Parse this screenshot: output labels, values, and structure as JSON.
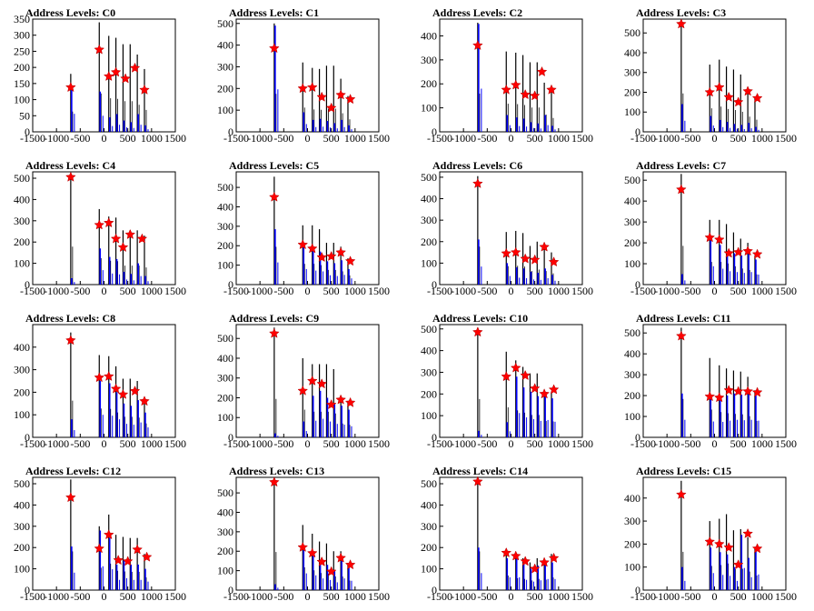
{
  "chart_data": {
    "type": "histogram",
    "x_ticks": [
      -1500,
      -1000,
      -500,
      0,
      500,
      1000,
      1500
    ],
    "xlim": [
      -1500,
      1500
    ],
    "colors": {
      "outline": "#000000",
      "blue_series": "#0000ff",
      "marker": "#ff0000"
    },
    "peak_x": [
      -700,
      -100,
      100,
      250,
      400,
      550,
      700,
      850
    ],
    "panels": [
      {
        "title": "Address Levels: C0",
        "ylim": [
          0,
          350
        ],
        "y_ticks": [
          0,
          50,
          100,
          150,
          200,
          250,
          300,
          350
        ],
        "black_peaks": [
          180,
          340,
          298,
          292,
          272,
          272,
          240,
          195
        ],
        "blue_peaks": [
          140,
          125,
          45,
          55,
          35,
          30,
          55,
          20
        ],
        "star_x": [
          -700,
          -100,
          100,
          250,
          450,
          650,
          850
        ],
        "star_y": [
          138,
          255,
          172,
          185,
          165,
          198,
          130
        ]
      },
      {
        "title": "Address Levels: C1",
        "ylim": [
          0,
          520
        ],
        "y_ticks": [
          0,
          100,
          200,
          300,
          400,
          500
        ],
        "black_peaks": [
          500,
          320,
          295,
          290,
          305,
          305,
          245,
          165
        ],
        "blue_peaks": [
          490,
          90,
          55,
          60,
          50,
          40,
          55,
          30
        ],
        "star_x": [
          -700,
          -100,
          100,
          300,
          500,
          700,
          900
        ],
        "star_y": [
          385,
          200,
          205,
          160,
          110,
          170,
          150
        ]
      },
      {
        "title": "Address Levels: C2",
        "ylim": [
          0,
          470
        ],
        "y_ticks": [
          0,
          100,
          200,
          300,
          400
        ],
        "black_peaks": [
          455,
          335,
          330,
          320,
          290,
          290,
          205,
          165
        ],
        "blue_peaks": [
          450,
          70,
          60,
          55,
          40,
          35,
          70,
          25
        ],
        "star_x": [
          -700,
          -100,
          100,
          300,
          500,
          650,
          850
        ],
        "star_y": [
          360,
          175,
          195,
          155,
          150,
          250,
          175
        ]
      },
      {
        "title": "Address Levels: C3",
        "ylim": [
          0,
          570
        ],
        "y_ticks": [
          0,
          100,
          200,
          300,
          400,
          500
        ],
        "black_peaks": [
          555,
          340,
          365,
          330,
          315,
          290,
          220,
          175
        ],
        "blue_peaks": [
          140,
          80,
          60,
          50,
          40,
          35,
          45,
          25
        ],
        "star_x": [
          -700,
          -100,
          100,
          300,
          500,
          700,
          900
        ],
        "star_y": [
          545,
          200,
          225,
          175,
          150,
          205,
          170
        ]
      },
      {
        "title": "Address Levels: C4",
        "ylim": [
          0,
          530
        ],
        "y_ticks": [
          0,
          100,
          200,
          300,
          400,
          500
        ],
        "black_peaks": [
          510,
          355,
          320,
          315,
          255,
          255,
          255,
          230
        ],
        "blue_peaks": [
          30,
          170,
          130,
          120,
          60,
          50,
          100,
          40
        ],
        "star_x": [
          -700,
          -100,
          100,
          250,
          400,
          550,
          800
        ],
        "star_y": [
          505,
          280,
          290,
          215,
          175,
          235,
          215
        ]
      },
      {
        "title": "Address Levels: C5",
        "ylim": [
          0,
          580
        ],
        "y_ticks": [
          0,
          100,
          200,
          300,
          400,
          500
        ],
        "black_peaks": [
          555,
          305,
          305,
          285,
          215,
          215,
          195,
          135
        ],
        "blue_peaks": [
          285,
          200,
          180,
          170,
          120,
          110,
          125,
          80
        ],
        "star_x": [
          -700,
          -100,
          100,
          300,
          500,
          700,
          900
        ],
        "star_y": [
          450,
          205,
          185,
          140,
          145,
          165,
          120
        ]
      },
      {
        "title": "Address Levels: C6",
        "ylim": [
          0,
          525
        ],
        "y_ticks": [
          0,
          100,
          200,
          300,
          400,
          500
        ],
        "black_peaks": [
          505,
          245,
          250,
          240,
          180,
          200,
          180,
          150
        ],
        "blue_peaks": [
          210,
          100,
          80,
          75,
          60,
          55,
          75,
          45
        ],
        "star_x": [
          -700,
          -100,
          100,
          300,
          500,
          700,
          900
        ],
        "star_y": [
          470,
          145,
          150,
          120,
          115,
          175,
          105
        ]
      },
      {
        "title": "Address Levels: C7",
        "ylim": [
          0,
          540
        ],
        "y_ticks": [
          0,
          100,
          200,
          300,
          400,
          500
        ],
        "black_peaks": [
          530,
          310,
          310,
          290,
          250,
          220,
          200,
          140
        ],
        "blue_peaks": [
          50,
          220,
          190,
          160,
          150,
          140,
          150,
          120
        ],
        "star_x": [
          -700,
          -100,
          100,
          300,
          500,
          700,
          900
        ],
        "star_y": [
          455,
          225,
          215,
          150,
          155,
          160,
          145
        ]
      },
      {
        "title": "Address Levels: C8",
        "ylim": [
          0,
          500
        ],
        "y_ticks": [
          0,
          100,
          200,
          300,
          400
        ],
        "black_peaks": [
          465,
          365,
          360,
          315,
          260,
          260,
          250,
          175
        ],
        "blue_peaks": [
          80,
          250,
          240,
          200,
          150,
          140,
          165,
          110
        ],
        "star_x": [
          -700,
          -100,
          100,
          250,
          400,
          650,
          850
        ],
        "star_y": [
          430,
          265,
          270,
          215,
          190,
          205,
          160
        ]
      },
      {
        "title": "Address Levels: C9",
        "ylim": [
          0,
          570
        ],
        "y_ticks": [
          0,
          100,
          200,
          300,
          400,
          500
        ],
        "black_peaks": [
          555,
          400,
          370,
          370,
          370,
          345,
          200,
          180
        ],
        "blue_peaks": [
          20,
          80,
          210,
          235,
          200,
          170,
          160,
          140
        ],
        "star_x": [
          -700,
          -100,
          100,
          300,
          500,
          700,
          900
        ],
        "star_y": [
          525,
          235,
          285,
          270,
          165,
          190,
          175
        ]
      },
      {
        "title": "Address Levels: C10",
        "ylim": [
          0,
          520
        ],
        "y_ticks": [
          0,
          100,
          200,
          300,
          400,
          500
        ],
        "black_peaks": [
          505,
          395,
          355,
          325,
          295,
          295,
          215,
          210
        ],
        "blue_peaks": [
          30,
          70,
          280,
          230,
          210,
          190,
          200,
          180
        ],
        "star_x": [
          -700,
          -100,
          100,
          300,
          500,
          700,
          900
        ],
        "star_y": [
          485,
          280,
          320,
          285,
          225,
          200,
          220
        ]
      },
      {
        "title": "Address Levels: C11",
        "ylim": [
          0,
          540
        ],
        "y_ticks": [
          0,
          100,
          200,
          300,
          400,
          500
        ],
        "black_peaks": [
          525,
          380,
          345,
          330,
          320,
          315,
          290,
          225
        ],
        "blue_peaks": [
          210,
          190,
          185,
          200,
          210,
          205,
          210,
          200
        ],
        "star_x": [
          -700,
          -100,
          100,
          300,
          500,
          700,
          900
        ],
        "star_y": [
          485,
          195,
          190,
          225,
          220,
          220,
          215
        ]
      },
      {
        "title": "Address Levels: C12",
        "ylim": [
          0,
          530
        ],
        "y_ticks": [
          0,
          100,
          200,
          300,
          400,
          500
        ],
        "black_peaks": [
          520,
          300,
          355,
          260,
          250,
          245,
          245,
          170
        ],
        "blue_peaks": [
          205,
          280,
          245,
          120,
          140,
          120,
          120,
          100
        ],
        "star_x": [
          -700,
          -100,
          100,
          300,
          500,
          700,
          900
        ],
        "star_y": [
          435,
          195,
          260,
          140,
          135,
          190,
          155
        ]
      },
      {
        "title": "Address Levels: C13",
        "ylim": [
          0,
          580
        ],
        "y_ticks": [
          0,
          100,
          200,
          300,
          400,
          500
        ],
        "black_peaks": [
          560,
          335,
          290,
          250,
          240,
          200,
          200,
          140
        ],
        "blue_peaks": [
          30,
          215,
          190,
          150,
          130,
          100,
          150,
          120
        ],
        "star_x": [
          -700,
          -100,
          100,
          300,
          500,
          700,
          900
        ],
        "star_y": [
          555,
          220,
          190,
          145,
          95,
          165,
          130
        ]
      },
      {
        "title": "Address Levels: C14",
        "ylim": [
          0,
          530
        ],
        "y_ticks": [
          0,
          100,
          200,
          300,
          400,
          500
        ],
        "black_peaks": [
          520,
          195,
          160,
          150,
          130,
          150,
          140,
          170
        ],
        "blue_peaks": [
          200,
          150,
          150,
          120,
          100,
          115,
          130,
          130
        ],
        "star_x": [
          -700,
          -100,
          100,
          300,
          500,
          700,
          900
        ],
        "star_y": [
          510,
          175,
          160,
          135,
          100,
          130,
          150
        ]
      },
      {
        "title": "Address Levels: C15",
        "ylim": [
          0,
          490
        ],
        "y_ticks": [
          0,
          100,
          200,
          300,
          400
        ],
        "black_peaks": [
          475,
          300,
          310,
          330,
          260,
          265,
          230,
          180
        ],
        "blue_peaks": [
          100,
          185,
          165,
          155,
          100,
          240,
          140,
          170
        ],
        "star_x": [
          -700,
          -100,
          100,
          300,
          500,
          700,
          900
        ],
        "star_y": [
          415,
          210,
          200,
          185,
          110,
          245,
          180
        ]
      }
    ]
  }
}
